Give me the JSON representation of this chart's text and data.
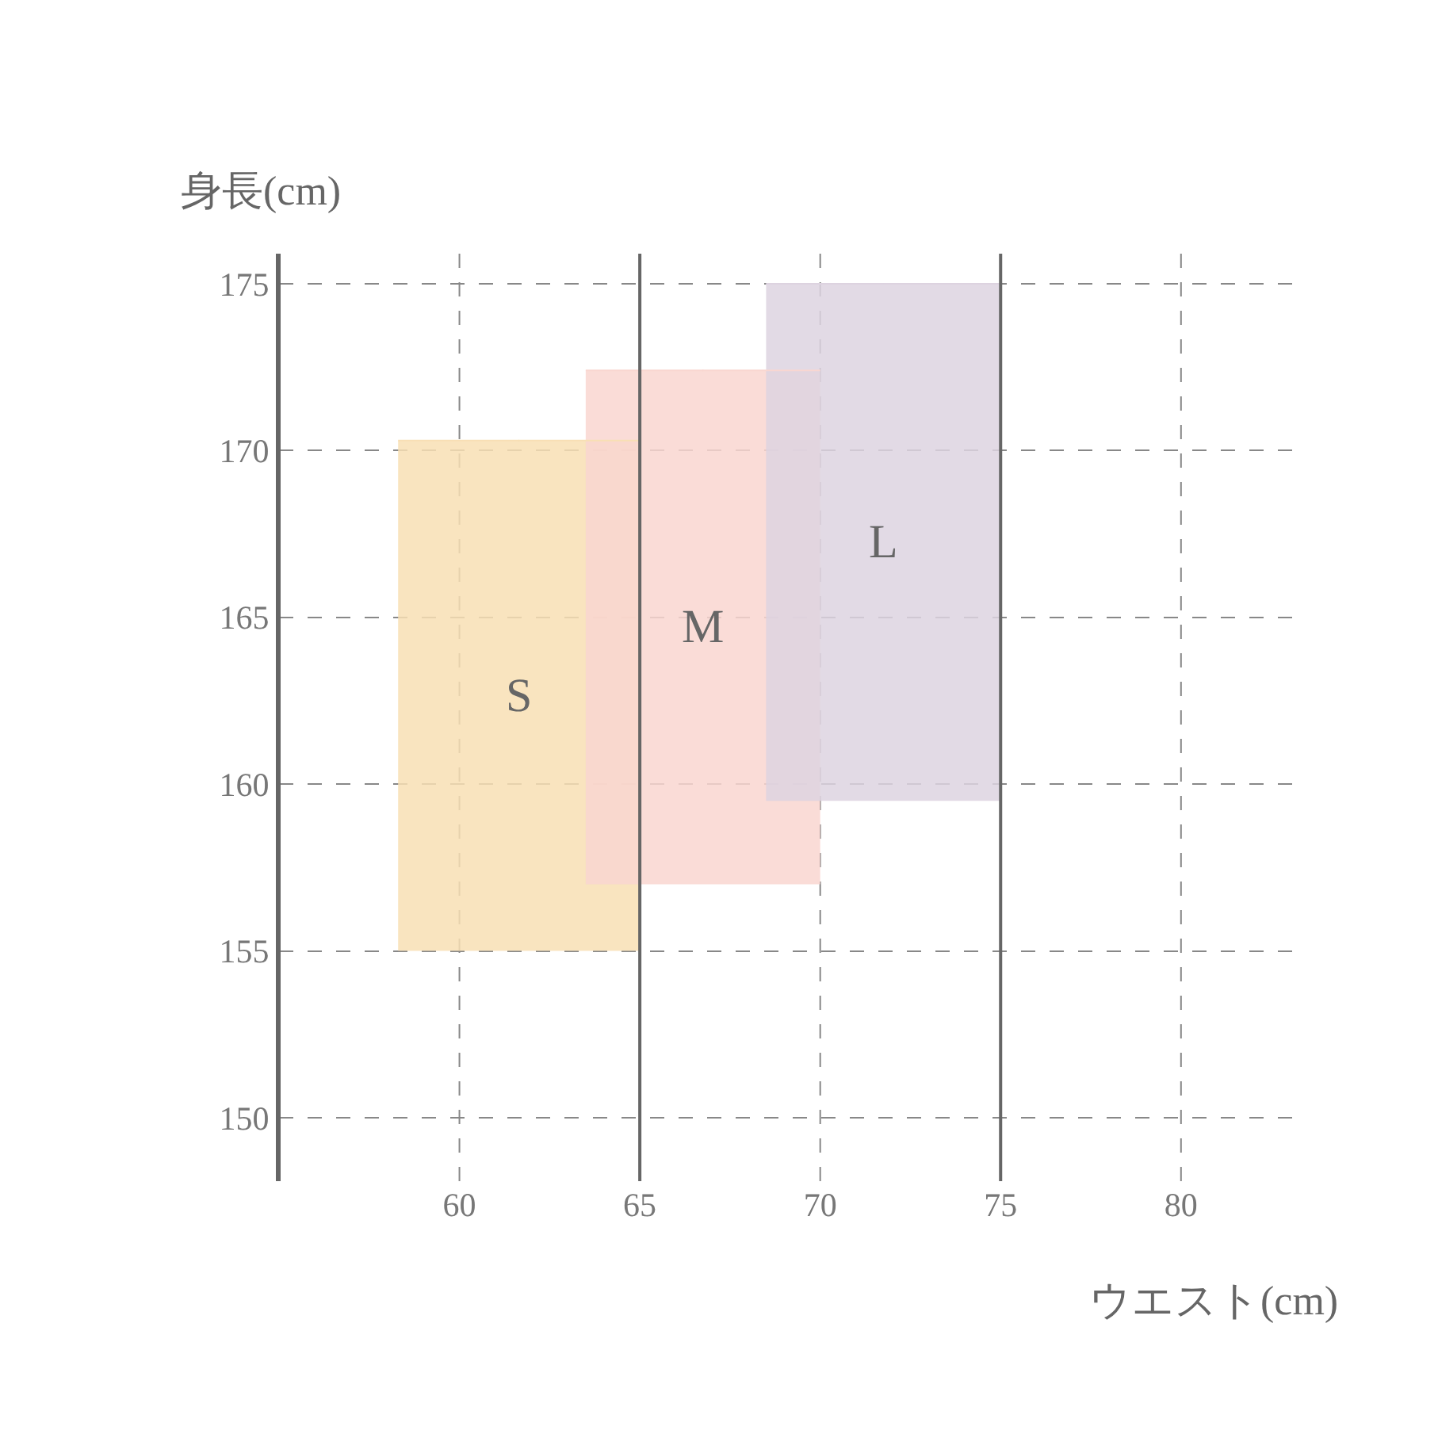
{
  "chart_data": {
    "type": "bar",
    "xlabel": "ウエスト(cm)",
    "ylabel": "身長(cm)",
    "xlim": [
      55,
      83.3
    ],
    "ylim": [
      148.1,
      175.9
    ],
    "xticks": [
      {
        "value": 55,
        "label": null
      },
      60,
      65,
      70,
      75,
      80
    ],
    "yticks": [
      150,
      155,
      160,
      165,
      170,
      175
    ],
    "grid": true,
    "series": [
      {
        "name": "S",
        "color": "#f8dfb4",
        "x": [
          61.65
        ],
        "base": [
          155
        ],
        "values": [
          15.3
        ],
        "xerrors": [
          [
            58.3,
            65
          ]
        ]
      },
      {
        "name": "M",
        "color": "#f9d6d0",
        "x": [
          66.75
        ],
        "base": [
          157
        ],
        "values": [
          15.4
        ],
        "xerrors": [
          [
            63.5,
            70
          ]
        ]
      },
      {
        "name": "L",
        "color": "#ddd3e0",
        "x": [
          71.75
        ],
        "base": [
          159.5
        ],
        "values": [
          15.5
        ],
        "xerrors": [
          [
            68.5,
            75
          ]
        ]
      }
    ]
  }
}
